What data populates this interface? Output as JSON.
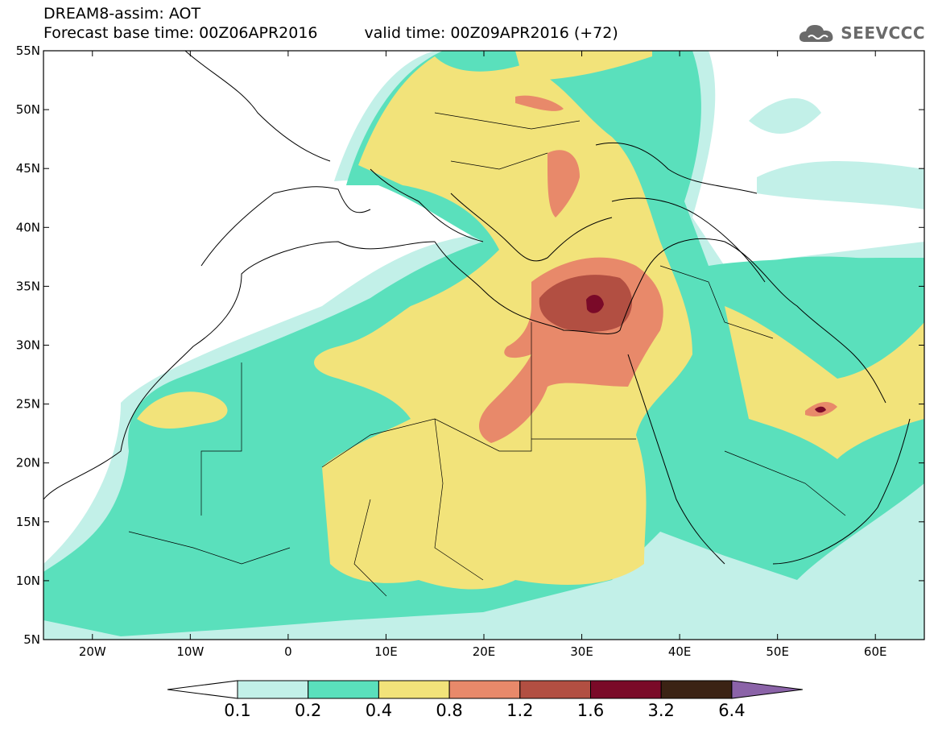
{
  "title": {
    "line1": "DREAM8-assim: AOT",
    "base_time": "Forecast base time: 00Z06APR2016",
    "valid_time": "valid time: 00Z09APR2016 (+72)"
  },
  "logo": {
    "text": "SEEVCCC",
    "icon": "cloud-icon"
  },
  "map": {
    "extent": {
      "lon": [
        -25,
        65
      ],
      "lat": [
        5,
        55
      ]
    },
    "lat_ticks": [
      "55N",
      "50N",
      "45N",
      "40N",
      "35N",
      "30N",
      "25N",
      "20N",
      "15N",
      "10N",
      "5N"
    ],
    "lon_ticks": [
      "20W",
      "10W",
      "0",
      "10E",
      "20E",
      "30E",
      "40E",
      "50E",
      "60E"
    ]
  },
  "colorbar": {
    "labels": [
      "0.1",
      "0.2",
      "0.4",
      "0.8",
      "1.2",
      "1.6",
      "3.2",
      "6.4"
    ],
    "colors": {
      "under": "#ffffff",
      "c0": "#c2f0e8",
      "c1": "#5ae0bc",
      "c2": "#f2e37a",
      "c3": "#e8896a",
      "c4": "#b24f42",
      "c5": "#7a0a28",
      "c6": "#3b2314",
      "over": "#8b63a8"
    }
  }
}
